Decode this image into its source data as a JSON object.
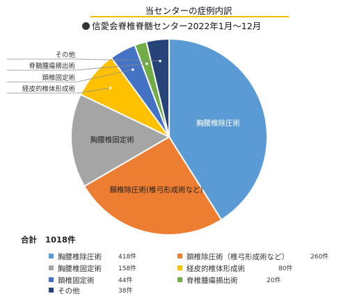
{
  "title": "当センターの症例内訳",
  "subtitle": "信愛会脊椎脊髄センター2022年1月～12月",
  "total_label": "合計",
  "total_value": "1018件",
  "chart_data": {
    "type": "pie",
    "slices": [
      {
        "label": "胸腰椎除圧術",
        "value": 418,
        "value_text": "418件",
        "color": "#5b9bd5"
      },
      {
        "label": "頚椎除圧術(椎弓形成術など)",
        "value": 260,
        "value_text": "260件",
        "color": "#ed7d31",
        "legend_label": "頚椎除圧術（椎弓形成術など）"
      },
      {
        "label": "胸腰椎固定術",
        "value": 158,
        "value_text": "158件",
        "color": "#a5a5a5"
      },
      {
        "label": "経皮的椎体形成術",
        "value": 80,
        "value_text": "80件",
        "color": "#ffc000"
      },
      {
        "label": "頚椎固定術",
        "value": 44,
        "value_text": "44件",
        "color": "#4472c4"
      },
      {
        "label": "脊椎腫瘍摘出術",
        "value": 20,
        "value_text": "20件",
        "color": "#70ad47",
        "callout_label": "脊髄腫瘍摘出術"
      },
      {
        "label": "その他",
        "value": 38,
        "value_text": "38件",
        "color": "#264478"
      }
    ]
  }
}
